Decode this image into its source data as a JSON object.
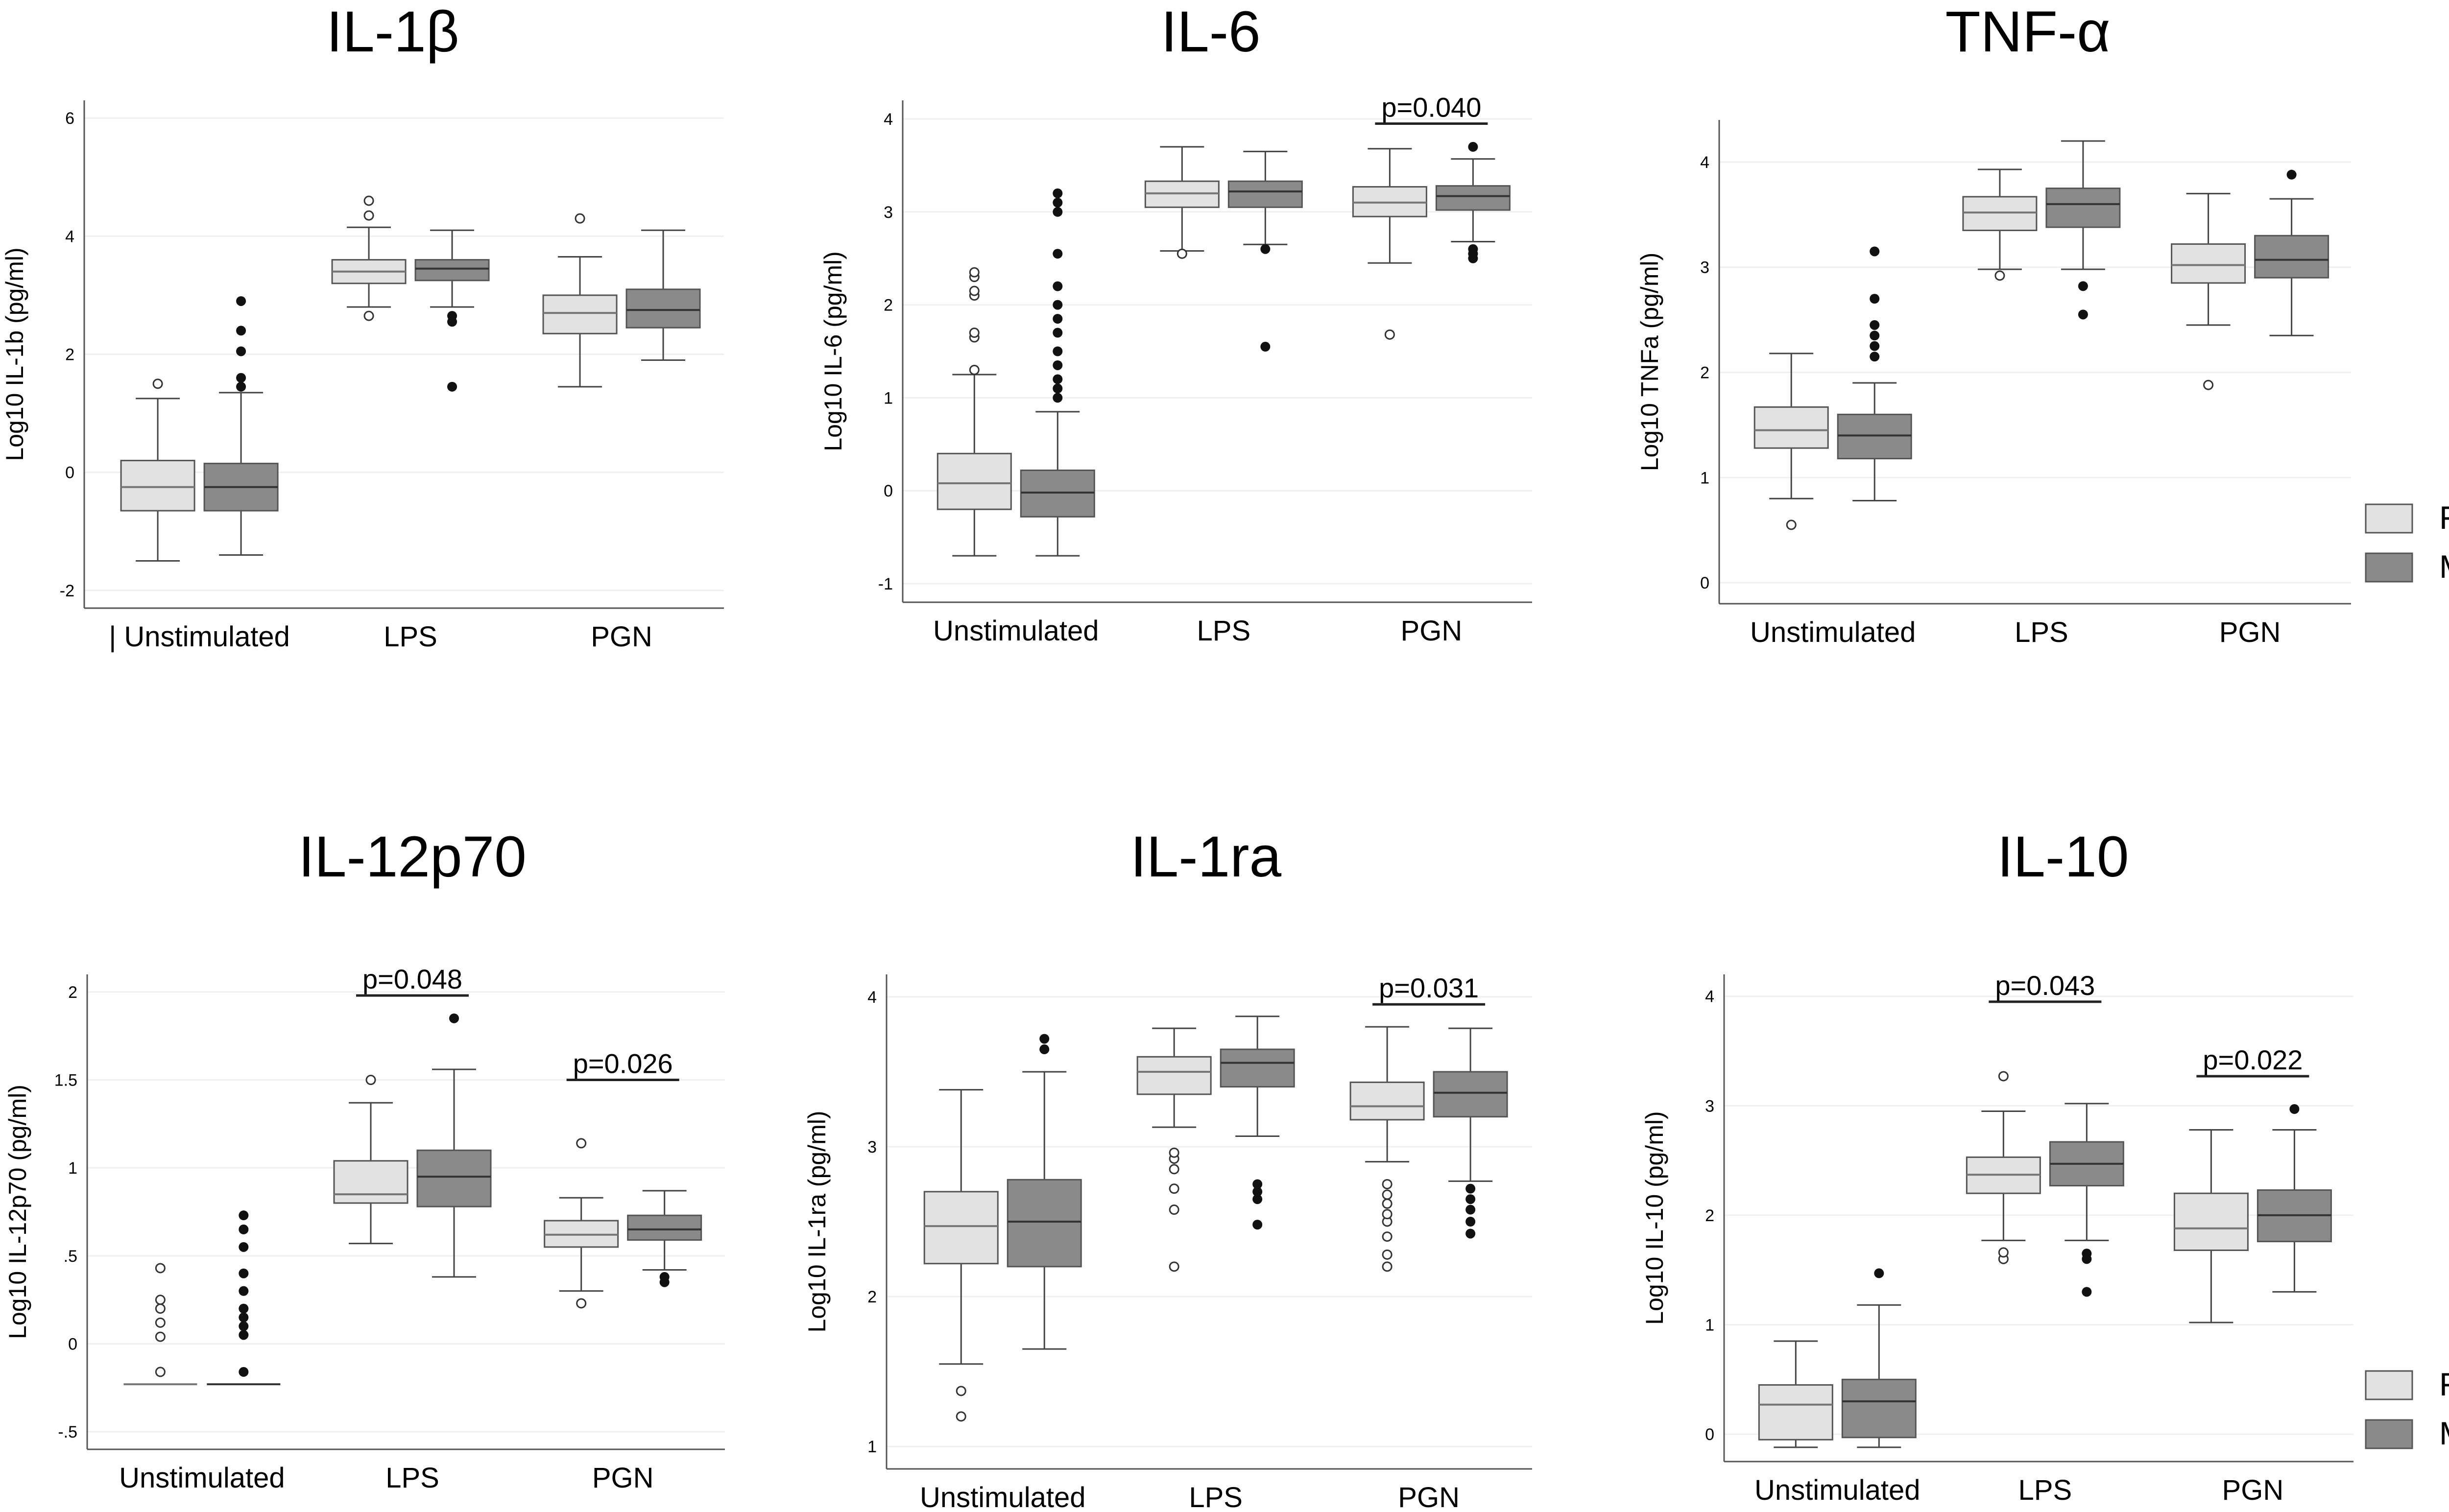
{
  "legend": {
    "placement": "right",
    "entries": [
      {
        "name": "Female",
        "color": "#e2e2e2"
      },
      {
        "name": "Male",
        "color": "#8a8a8a"
      }
    ]
  },
  "chart_data": [
    {
      "type": "box",
      "title": "IL-1β",
      "ylabel": "Log10 IL-1b (pg/ml)",
      "ylim": [
        -2.3,
        6.3
      ],
      "yticks": [
        -2,
        0,
        2,
        4,
        6
      ],
      "ytick_labels": [
        "-2",
        "0",
        "2",
        "4",
        "6"
      ],
      "categories": [
        "Unstimulated",
        "LPS",
        "PGN"
      ],
      "category_label_prefix": [
        "| ",
        "",
        ""
      ],
      "series": [
        {
          "name": "Female",
          "boxes": [
            {
              "q1": -0.65,
              "median": -0.25,
              "q3": 0.2,
              "whisker_low": -1.5,
              "whisker_high": 1.25,
              "outliers": [
                1.5
              ]
            },
            {
              "q1": 3.2,
              "median": 3.4,
              "q3": 3.6,
              "whisker_low": 2.8,
              "whisker_high": 4.15,
              "outliers": [
                2.65,
                4.35,
                4.6
              ]
            },
            {
              "q1": 2.35,
              "median": 2.7,
              "q3": 3.0,
              "whisker_low": 1.45,
              "whisker_high": 3.65,
              "outliers": [
                4.3
              ]
            }
          ]
        },
        {
          "name": "Male",
          "boxes": [
            {
              "q1": -0.65,
              "median": -0.25,
              "q3": 0.15,
              "whisker_low": -1.4,
              "whisker_high": 1.35,
              "outliers": [
                1.45,
                1.6,
                2.05,
                2.4,
                2.9
              ]
            },
            {
              "q1": 3.25,
              "median": 3.45,
              "q3": 3.6,
              "whisker_low": 2.8,
              "whisker_high": 4.1,
              "outliers": [
                1.45,
                2.55,
                2.65
              ]
            },
            {
              "q1": 2.45,
              "median": 2.75,
              "q3": 3.1,
              "whisker_low": 1.9,
              "whisker_high": 4.1,
              "outliers": []
            }
          ]
        }
      ],
      "annotations": []
    },
    {
      "type": "box",
      "title": "IL-6",
      "ylabel": "Log10 IL-6 (pg/ml)",
      "ylim": [
        -1.2,
        4.2
      ],
      "yticks": [
        -1,
        0,
        1,
        2,
        3,
        4
      ],
      "ytick_labels": [
        "-1",
        "0",
        "1",
        "2",
        "3",
        "4"
      ],
      "categories": [
        "Unstimulated",
        "LPS",
        "PGN"
      ],
      "category_label_prefix": [
        "",
        "",
        ""
      ],
      "series": [
        {
          "name": "Female",
          "boxes": [
            {
              "q1": -0.2,
              "median": 0.08,
              "q3": 0.4,
              "whisker_low": -0.7,
              "whisker_high": 1.25,
              "outliers": [
                1.3,
                1.65,
                1.7,
                2.1,
                2.15,
                2.3,
                2.35
              ]
            },
            {
              "q1": 3.05,
              "median": 3.2,
              "q3": 3.33,
              "whisker_low": 2.58,
              "whisker_high": 3.7,
              "outliers": [
                2.55
              ]
            },
            {
              "q1": 2.95,
              "median": 3.1,
              "q3": 3.27,
              "whisker_low": 2.45,
              "whisker_high": 3.68,
              "outliers": [
                1.68
              ]
            }
          ]
        },
        {
          "name": "Male",
          "boxes": [
            {
              "q1": -0.28,
              "median": -0.02,
              "q3": 0.22,
              "whisker_low": -0.7,
              "whisker_high": 0.85,
              "outliers": [
                1.0,
                1.1,
                1.2,
                1.35,
                1.5,
                1.7,
                1.85,
                2.0,
                2.2,
                2.55,
                3.0,
                3.1,
                3.2
              ]
            },
            {
              "q1": 3.05,
              "median": 3.22,
              "q3": 3.33,
              "whisker_low": 2.65,
              "whisker_high": 3.65,
              "outliers": [
                1.55,
                2.6
              ]
            },
            {
              "q1": 3.02,
              "median": 3.17,
              "q3": 3.28,
              "whisker_low": 2.68,
              "whisker_high": 3.57,
              "outliers": [
                2.5,
                2.55,
                2.6,
                3.7
              ]
            }
          ]
        }
      ],
      "annotations": [
        {
          "category": 2,
          "text": "p=0.040",
          "y": 3.95
        }
      ]
    },
    {
      "type": "box",
      "title": "TNF-α",
      "ylabel": "Log10 TNFa (pg/ml)",
      "ylim": [
        -0.2,
        4.4
      ],
      "yticks": [
        0,
        1,
        2,
        3,
        4
      ],
      "ytick_labels": [
        "0",
        "1",
        "2",
        "3",
        "4"
      ],
      "categories": [
        "Unstimulated",
        "LPS",
        "PGN"
      ],
      "category_label_prefix": [
        "",
        "",
        ""
      ],
      "series": [
        {
          "name": "Female",
          "boxes": [
            {
              "q1": 1.28,
              "median": 1.45,
              "q3": 1.67,
              "whisker_low": 0.8,
              "whisker_high": 2.18,
              "outliers": [
                0.55
              ]
            },
            {
              "q1": 3.35,
              "median": 3.52,
              "q3": 3.67,
              "whisker_low": 2.98,
              "whisker_high": 3.93,
              "outliers": [
                2.92
              ]
            },
            {
              "q1": 2.85,
              "median": 3.02,
              "q3": 3.22,
              "whisker_low": 2.45,
              "whisker_high": 3.7,
              "outliers": [
                1.88
              ]
            }
          ]
        },
        {
          "name": "Male",
          "boxes": [
            {
              "q1": 1.18,
              "median": 1.4,
              "q3": 1.6,
              "whisker_low": 0.78,
              "whisker_high": 1.9,
              "outliers": [
                2.15,
                2.25,
                2.35,
                2.45,
                2.7,
                3.15
              ]
            },
            {
              "q1": 3.38,
              "median": 3.6,
              "q3": 3.75,
              "whisker_low": 2.98,
              "whisker_high": 4.2,
              "outliers": [
                2.55,
                2.82
              ]
            },
            {
              "q1": 2.9,
              "median": 3.07,
              "q3": 3.3,
              "whisker_low": 2.35,
              "whisker_high": 3.65,
              "outliers": [
                3.88
              ]
            }
          ]
        }
      ],
      "annotations": []
    },
    {
      "type": "box",
      "title": "IL-12p70",
      "ylabel": "Log10 IL-12p70 (pg/ml)",
      "ylim": [
        -0.6,
        2.1
      ],
      "yticks": [
        -0.5,
        0,
        0.5,
        1,
        1.5,
        2
      ],
      "ytick_labels": [
        "-.5",
        "0",
        ".5",
        "1",
        "1.5",
        "2"
      ],
      "categories": [
        "Unstimulated",
        "LPS",
        "PGN"
      ],
      "category_label_prefix": [
        "",
        "",
        ""
      ],
      "series": [
        {
          "name": "Female",
          "boxes": [
            {
              "q1": -0.23,
              "median": -0.23,
              "q3": -0.23,
              "whisker_low": -0.23,
              "whisker_high": -0.23,
              "outliers": [
                -0.16,
                0.04,
                0.12,
                0.2,
                0.25,
                0.43
              ]
            },
            {
              "q1": 0.8,
              "median": 0.85,
              "q3": 1.04,
              "whisker_low": 0.57,
              "whisker_high": 1.37,
              "outliers": [
                1.5
              ]
            },
            {
              "q1": 0.55,
              "median": 0.62,
              "q3": 0.7,
              "whisker_low": 0.3,
              "whisker_high": 0.83,
              "outliers": [
                0.23,
                1.14
              ]
            }
          ]
        },
        {
          "name": "Male",
          "boxes": [
            {
              "q1": -0.23,
              "median": -0.23,
              "q3": -0.23,
              "whisker_low": -0.23,
              "whisker_high": -0.23,
              "outliers": [
                -0.16,
                0.05,
                0.1,
                0.15,
                0.2,
                0.3,
                0.4,
                0.55,
                0.65,
                0.73
              ]
            },
            {
              "q1": 0.78,
              "median": 0.95,
              "q3": 1.1,
              "whisker_low": 0.38,
              "whisker_high": 1.56,
              "outliers": [
                1.85
              ]
            },
            {
              "q1": 0.59,
              "median": 0.65,
              "q3": 0.73,
              "whisker_low": 0.42,
              "whisker_high": 0.87,
              "outliers": [
                0.35,
                0.38
              ]
            }
          ]
        }
      ],
      "annotations": [
        {
          "category": 1,
          "text": "p=0.048",
          "y": 1.98
        },
        {
          "category": 2,
          "text": "p=0.026",
          "y": 1.5
        }
      ]
    },
    {
      "type": "box",
      "title": "IL-1ra",
      "ylabel": "Log10 IL-1ra (pg/ml)",
      "ylim": [
        0.85,
        4.15
      ],
      "yticks": [
        1,
        2,
        3,
        4
      ],
      "ytick_labels": [
        "1",
        "2",
        "3",
        "4"
      ],
      "categories": [
        "Unstimulated",
        "LPS",
        "PGN"
      ],
      "category_label_prefix": [
        "",
        "",
        ""
      ],
      "series": [
        {
          "name": "Female",
          "boxes": [
            {
              "q1": 2.22,
              "median": 2.47,
              "q3": 2.7,
              "whisker_low": 1.55,
              "whisker_high": 3.38,
              "outliers": [
                1.2,
                1.37
              ]
            },
            {
              "q1": 3.35,
              "median": 3.5,
              "q3": 3.6,
              "whisker_low": 3.13,
              "whisker_high": 3.79,
              "outliers": [
                2.2,
                2.58,
                2.72,
                2.85,
                2.92,
                2.96
              ]
            },
            {
              "q1": 3.18,
              "median": 3.27,
              "q3": 3.43,
              "whisker_low": 2.9,
              "whisker_high": 3.8,
              "outliers": [
                2.2,
                2.28,
                2.4,
                2.5,
                2.55,
                2.62,
                2.68,
                2.75
              ]
            }
          ]
        },
        {
          "name": "Male",
          "boxes": [
            {
              "q1": 2.2,
              "median": 2.5,
              "q3": 2.78,
              "whisker_low": 1.65,
              "whisker_high": 3.5,
              "outliers": [
                3.65,
                3.72
              ]
            },
            {
              "q1": 3.4,
              "median": 3.56,
              "q3": 3.65,
              "whisker_low": 3.07,
              "whisker_high": 3.87,
              "outliers": [
                2.48,
                2.65,
                2.7,
                2.75
              ]
            },
            {
              "q1": 3.2,
              "median": 3.36,
              "q3": 3.5,
              "whisker_low": 2.77,
              "whisker_high": 3.79,
              "outliers": [
                2.42,
                2.5,
                2.58,
                2.65,
                2.72
              ]
            }
          ]
        }
      ],
      "annotations": [
        {
          "category": 2,
          "text": "p=0.031",
          "y": 3.95
        }
      ]
    },
    {
      "type": "box",
      "title": "IL-10",
      "ylabel": "Log10 IL-10 (pg/ml)",
      "ylim": [
        -0.25,
        4.2
      ],
      "yticks": [
        0,
        1,
        2,
        3,
        4
      ],
      "ytick_labels": [
        "0",
        "1",
        "2",
        "3",
        "4"
      ],
      "categories": [
        "Unstimulated",
        "LPS",
        "PGN"
      ],
      "category_label_prefix": [
        "",
        "",
        ""
      ],
      "series": [
        {
          "name": "Female",
          "boxes": [
            {
              "q1": -0.05,
              "median": 0.27,
              "q3": 0.45,
              "whisker_low": -0.12,
              "whisker_high": 0.85,
              "outliers": []
            },
            {
              "q1": 2.2,
              "median": 2.37,
              "q3": 2.53,
              "whisker_low": 1.77,
              "whisker_high": 2.95,
              "outliers": [
                1.6,
                1.66,
                3.27
              ]
            },
            {
              "q1": 1.68,
              "median": 1.88,
              "q3": 2.2,
              "whisker_low": 1.02,
              "whisker_high": 2.78,
              "outliers": []
            }
          ]
        },
        {
          "name": "Male",
          "boxes": [
            {
              "q1": -0.03,
              "median": 0.3,
              "q3": 0.5,
              "whisker_low": -0.12,
              "whisker_high": 1.18,
              "outliers": [
                1.47
              ]
            },
            {
              "q1": 2.27,
              "median": 2.47,
              "q3": 2.67,
              "whisker_low": 1.77,
              "whisker_high": 3.02,
              "outliers": [
                1.3,
                1.6,
                1.65
              ]
            },
            {
              "q1": 1.76,
              "median": 2.0,
              "q3": 2.23,
              "whisker_low": 1.3,
              "whisker_high": 2.78,
              "outliers": [
                2.97
              ]
            }
          ]
        }
      ],
      "annotations": [
        {
          "category": 1,
          "text": "p=0.043",
          "y": 3.95
        },
        {
          "category": 2,
          "text": "p=0.022",
          "y": 3.27
        }
      ]
    }
  ]
}
